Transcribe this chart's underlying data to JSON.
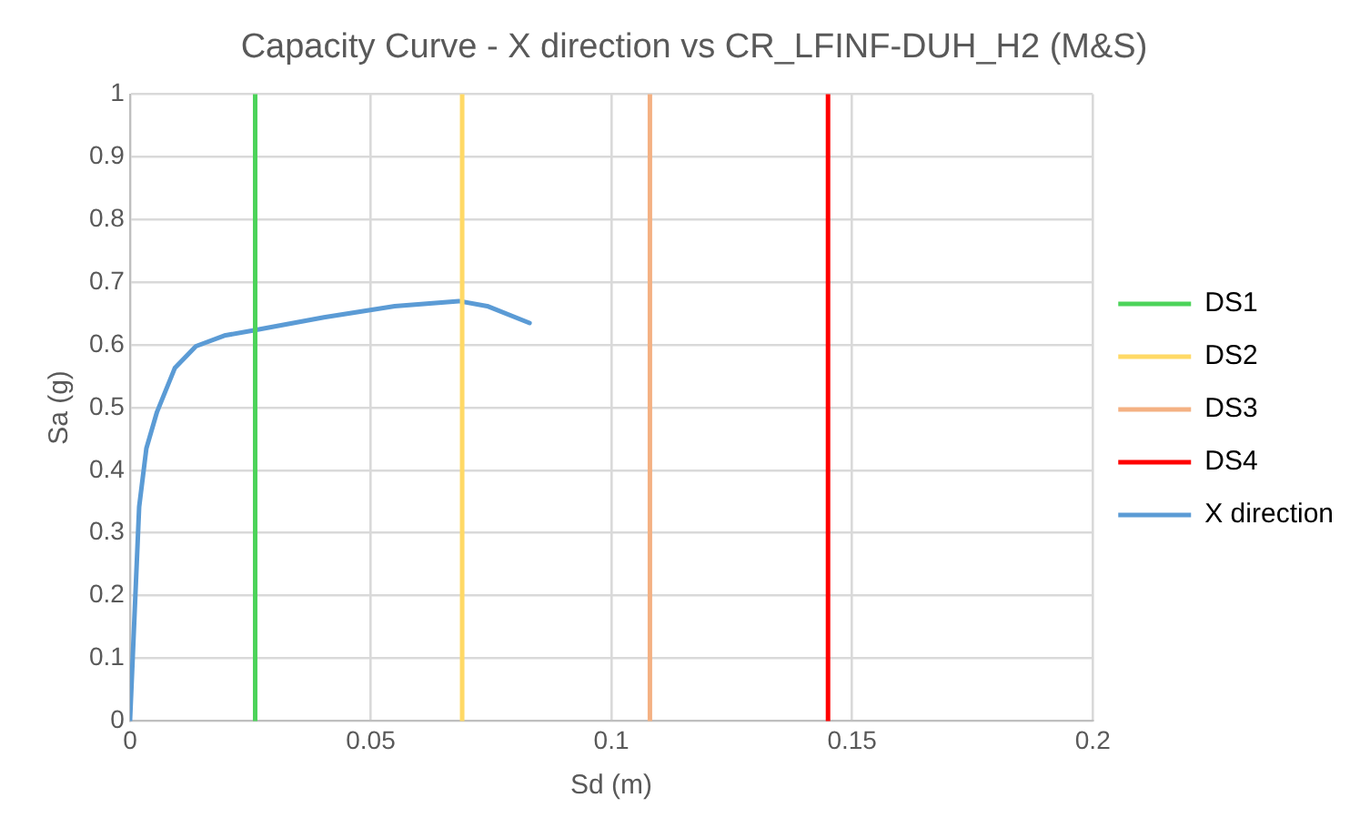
{
  "chart_data": {
    "type": "line",
    "title": "Capacity Curve - X direction vs CR_LFINF-DUH_H2 (M&S)",
    "xlabel": "Sd (m)",
    "ylabel": "Sa (g)",
    "xlim": [
      0,
      0.2
    ],
    "xticks": [
      0,
      0.05,
      0.1,
      0.15,
      0.2
    ],
    "ylim": [
      0,
      1
    ],
    "yticks": [
      0,
      0.1,
      0.2,
      0.3,
      0.4,
      0.5,
      0.6,
      0.7,
      0.8,
      0.9,
      1
    ],
    "grid": true,
    "legend": "right",
    "marker": "none",
    "line_style": "solid",
    "series": [
      {
        "name": "DS1",
        "color": "#4cd35a",
        "x": [
          0.026,
          0.026
        ],
        "values": [
          0,
          1
        ]
      },
      {
        "name": "DS2",
        "color": "#ffd966",
        "x": [
          0.069,
          0.069
        ],
        "values": [
          0,
          1
        ]
      },
      {
        "name": "DS3",
        "color": "#f4b183",
        "x": [
          0.108,
          0.108
        ],
        "values": [
          0,
          1
        ]
      },
      {
        "name": "DS4",
        "color": "#ff0000",
        "x": [
          0.145,
          0.145
        ],
        "values": [
          0,
          1
        ]
      },
      {
        "name": "X direction",
        "color": "#5b9bd5",
        "x": [
          0,
          0.0019,
          0.0034,
          0.0056,
          0.0093,
          0.0137,
          0.0196,
          0.0255,
          0.0403,
          0.055,
          0.0683,
          0.0742,
          0.083
        ],
        "values": [
          0,
          0.342,
          0.435,
          0.493,
          0.563,
          0.598,
          0.615,
          0.623,
          0.644,
          0.662,
          0.67,
          0.662,
          0.635
        ]
      }
    ]
  }
}
